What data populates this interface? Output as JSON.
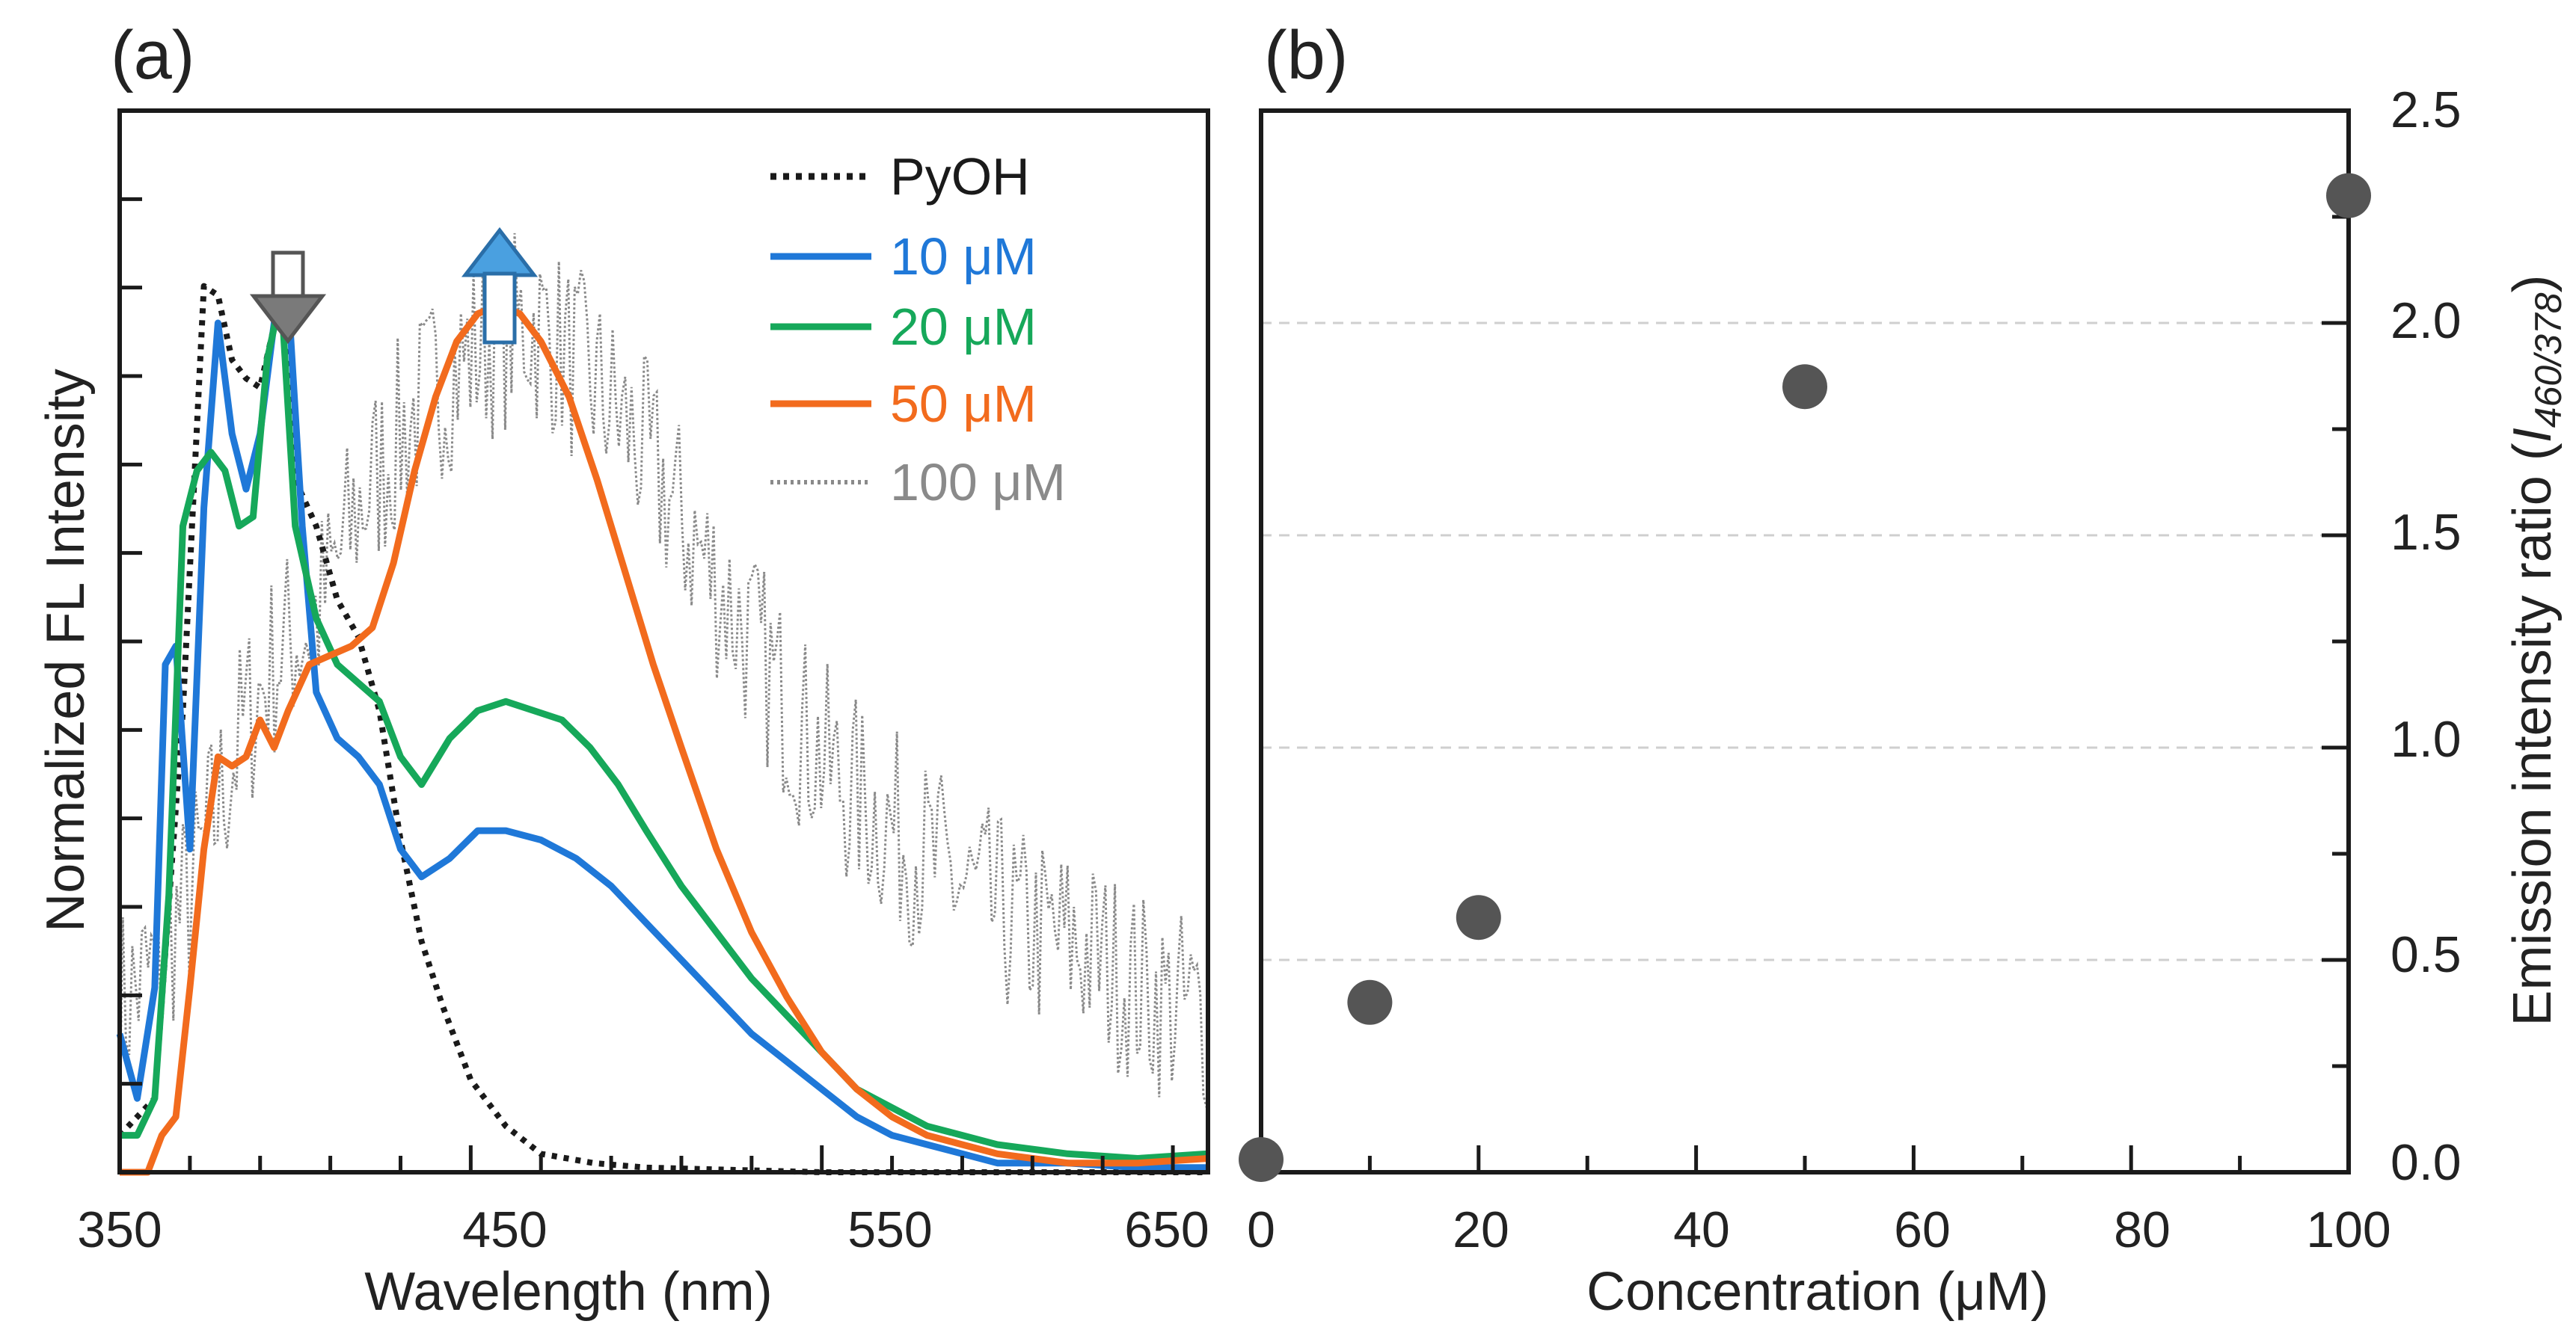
{
  "colors": {
    "axis": "#1a1a1a",
    "blue": "#1f78d8",
    "green": "#16a85a",
    "orange": "#f26b1d",
    "black": "#1a1a1a",
    "gray": "#8a8a8a",
    "point": "#555555",
    "grid": "#cfcfcf",
    "arrow_down": "#7a7a7a",
    "arrow_up": "#4aa0e0"
  },
  "chart_data": [
    {
      "panel": "(a)",
      "type": "line",
      "title": "",
      "xlabel": "Wavelength (nm)",
      "ylabel": "Normalized  FL  Intensity",
      "xlim": [
        350,
        660
      ],
      "ylim": [
        0,
        1.15
      ],
      "xticks": [
        350,
        450,
        550,
        650
      ],
      "yticks_labeled": false,
      "grid": false,
      "legend": "top-right",
      "series": [
        {
          "name": "PyOH",
          "color_key": "black",
          "style": "dotted",
          "points": [
            [
              350,
              0.04
            ],
            [
              360,
              0.08
            ],
            [
              368,
              0.5
            ],
            [
              374,
              0.96
            ],
            [
              378,
              0.95
            ],
            [
              382,
              0.88
            ],
            [
              386,
              0.86
            ],
            [
              390,
              0.85
            ],
            [
              396,
              0.95
            ],
            [
              400,
              0.75
            ],
            [
              406,
              0.7
            ],
            [
              412,
              0.62
            ],
            [
              418,
              0.58
            ],
            [
              424,
              0.5
            ],
            [
              430,
              0.36
            ],
            [
              436,
              0.25
            ],
            [
              442,
              0.18
            ],
            [
              450,
              0.1
            ],
            [
              460,
              0.05
            ],
            [
              470,
              0.02
            ],
            [
              485,
              0.01
            ],
            [
              500,
              0.005
            ],
            [
              550,
              0.0
            ],
            [
              600,
              0.0
            ],
            [
              660,
              0.0
            ]
          ]
        },
        {
          "name": "10 μM",
          "color_key": "blue",
          "style": "solid",
          "points": [
            [
              350,
              0.15
            ],
            [
              355,
              0.08
            ],
            [
              360,
              0.2
            ],
            [
              363,
              0.55
            ],
            [
              366,
              0.57
            ],
            [
              370,
              0.35
            ],
            [
              374,
              0.72
            ],
            [
              378,
              0.92
            ],
            [
              382,
              0.8
            ],
            [
              386,
              0.74
            ],
            [
              390,
              0.8
            ],
            [
              394,
              0.92
            ],
            [
              398,
              0.95
            ],
            [
              402,
              0.7
            ],
            [
              406,
              0.52
            ],
            [
              412,
              0.47
            ],
            [
              418,
              0.45
            ],
            [
              424,
              0.42
            ],
            [
              430,
              0.35
            ],
            [
              436,
              0.32
            ],
            [
              444,
              0.34
            ],
            [
              452,
              0.37
            ],
            [
              460,
              0.37
            ],
            [
              470,
              0.36
            ],
            [
              480,
              0.34
            ],
            [
              490,
              0.31
            ],
            [
              500,
              0.27
            ],
            [
              510,
              0.23
            ],
            [
              520,
              0.19
            ],
            [
              530,
              0.15
            ],
            [
              540,
              0.12
            ],
            [
              550,
              0.09
            ],
            [
              560,
              0.06
            ],
            [
              570,
              0.04
            ],
            [
              580,
              0.03
            ],
            [
              590,
              0.02
            ],
            [
              600,
              0.01
            ],
            [
              620,
              0.01
            ],
            [
              640,
              0.005
            ],
            [
              660,
              0.005
            ]
          ]
        },
        {
          "name": "20 μM",
          "color_key": "green",
          "style": "solid",
          "points": [
            [
              350,
              0.04
            ],
            [
              355,
              0.04
            ],
            [
              360,
              0.08
            ],
            [
              364,
              0.3
            ],
            [
              368,
              0.7
            ],
            [
              372,
              0.76
            ],
            [
              376,
              0.78
            ],
            [
              380,
              0.76
            ],
            [
              384,
              0.7
            ],
            [
              388,
              0.71
            ],
            [
              392,
              0.88
            ],
            [
              396,
              0.95
            ],
            [
              400,
              0.7
            ],
            [
              406,
              0.6
            ],
            [
              412,
              0.55
            ],
            [
              418,
              0.53
            ],
            [
              424,
              0.51
            ],
            [
              430,
              0.45
            ],
            [
              436,
              0.42
            ],
            [
              444,
              0.47
            ],
            [
              452,
              0.5
            ],
            [
              460,
              0.51
            ],
            [
              468,
              0.5
            ],
            [
              476,
              0.49
            ],
            [
              484,
              0.46
            ],
            [
              492,
              0.42
            ],
            [
              500,
              0.37
            ],
            [
              510,
              0.31
            ],
            [
              520,
              0.26
            ],
            [
              530,
              0.21
            ],
            [
              540,
              0.17
            ],
            [
              550,
              0.13
            ],
            [
              560,
              0.09
            ],
            [
              570,
              0.07
            ],
            [
              580,
              0.05
            ],
            [
              590,
              0.04
            ],
            [
              600,
              0.03
            ],
            [
              620,
              0.02
            ],
            [
              640,
              0.015
            ],
            [
              660,
              0.02
            ]
          ]
        },
        {
          "name": "50 μM",
          "color_key": "orange",
          "style": "solid",
          "points": [
            [
              350,
              0.0
            ],
            [
              358,
              0.0
            ],
            [
              362,
              0.04
            ],
            [
              366,
              0.06
            ],
            [
              370,
              0.2
            ],
            [
              374,
              0.35
            ],
            [
              378,
              0.45
            ],
            [
              382,
              0.44
            ],
            [
              386,
              0.45
            ],
            [
              390,
              0.49
            ],
            [
              394,
              0.46
            ],
            [
              398,
              0.5
            ],
            [
              404,
              0.55
            ],
            [
              410,
              0.56
            ],
            [
              416,
              0.57
            ],
            [
              422,
              0.59
            ],
            [
              428,
              0.66
            ],
            [
              434,
              0.76
            ],
            [
              440,
              0.84
            ],
            [
              446,
              0.9
            ],
            [
              452,
              0.93
            ],
            [
              458,
              0.94
            ],
            [
              464,
              0.93
            ],
            [
              470,
              0.9
            ],
            [
              478,
              0.84
            ],
            [
              486,
              0.75
            ],
            [
              494,
              0.65
            ],
            [
              502,
              0.55
            ],
            [
              510,
              0.46
            ],
            [
              520,
              0.35
            ],
            [
              530,
              0.26
            ],
            [
              540,
              0.19
            ],
            [
              550,
              0.13
            ],
            [
              560,
              0.09
            ],
            [
              570,
              0.06
            ],
            [
              580,
              0.04
            ],
            [
              590,
              0.03
            ],
            [
              600,
              0.02
            ],
            [
              620,
              0.01
            ],
            [
              640,
              0.01
            ],
            [
              660,
              0.015
            ]
          ]
        },
        {
          "name": "100 μM",
          "color_key": "gray",
          "style": "dotted-noisy",
          "points": [
            [
              350,
              0.18
            ],
            [
              355,
              0.2
            ],
            [
              360,
              0.22
            ],
            [
              365,
              0.26
            ],
            [
              370,
              0.3
            ],
            [
              375,
              0.36
            ],
            [
              380,
              0.42
            ],
            [
              385,
              0.48
            ],
            [
              390,
              0.52
            ],
            [
              395,
              0.56
            ],
            [
              400,
              0.58
            ],
            [
              406,
              0.6
            ],
            [
              412,
              0.66
            ],
            [
              418,
              0.72
            ],
            [
              424,
              0.76
            ],
            [
              430,
              0.8
            ],
            [
              436,
              0.83
            ],
            [
              442,
              0.86
            ],
            [
              448,
              0.88
            ],
            [
              454,
              0.9
            ],
            [
              460,
              0.91
            ],
            [
              466,
              0.92
            ],
            [
              472,
              0.91
            ],
            [
              478,
              0.88
            ],
            [
              484,
              0.86
            ],
            [
              490,
              0.83
            ],
            [
              496,
              0.8
            ],
            [
              502,
              0.76
            ],
            [
              508,
              0.72
            ],
            [
              514,
              0.68
            ],
            [
              520,
              0.64
            ],
            [
              526,
              0.6
            ],
            [
              532,
              0.56
            ],
            [
              538,
              0.52
            ],
            [
              544,
              0.48
            ],
            [
              550,
              0.45
            ],
            [
              556,
              0.42
            ],
            [
              562,
              0.4
            ],
            [
              568,
              0.38
            ],
            [
              574,
              0.36
            ],
            [
              580,
              0.34
            ],
            [
              590,
              0.31
            ],
            [
              600,
              0.28
            ],
            [
              610,
              0.26
            ],
            [
              620,
              0.25
            ],
            [
              630,
              0.23
            ],
            [
              640,
              0.2
            ],
            [
              650,
              0.18
            ],
            [
              660,
              0.17
            ]
          ]
        }
      ],
      "annotations": [
        "down-arrow at ~396 nm (PyOH monomer peak decreasing)",
        "up-arrow at ~460 nm (excimer band increasing)"
      ]
    },
    {
      "panel": "(b)",
      "type": "scatter",
      "title": "",
      "xlabel": "Concentration (μM)",
      "ylabel": "Emission intensity ratio (I460/378)",
      "xlim": [
        0,
        100
      ],
      "ylim": [
        0.0,
        2.5
      ],
      "xticks": [
        0,
        20,
        40,
        60,
        80,
        100
      ],
      "yticks": [
        0.0,
        0.5,
        1.0,
        1.5,
        2.0,
        2.5
      ],
      "grid": true,
      "x": [
        0,
        10,
        20,
        50,
        100
      ],
      "y": [
        0.03,
        0.4,
        0.6,
        1.85,
        2.3
      ]
    }
  ],
  "text": {
    "panel_a": "(a)",
    "panel_b": "(b)",
    "a_xlabel": "Wavelength (nm)",
    "a_ylabel": "Normalized  FL  Intensity",
    "b_xlabel": "Concentration (μM)",
    "b_ylabel_main": "Emission intensity ratio (",
    "b_ylabel_I": "I",
    "b_ylabel_sub": "460/378",
    "b_ylabel_close": ")",
    "a_xtick_0": "350",
    "a_xtick_1": "450",
    "a_xtick_2": "550",
    "a_xtick_3": "650",
    "b_xtick_0": "0",
    "b_xtick_1": "20",
    "b_xtick_2": "40",
    "b_xtick_3": "60",
    "b_xtick_4": "80",
    "b_xtick_5": "100",
    "b_ytick_0": "0.0",
    "b_ytick_1": "0.5",
    "b_ytick_2": "1.0",
    "b_ytick_3": "1.5",
    "b_ytick_4": "2.0",
    "b_ytick_5": "2.5",
    "legend_0": "PyOH",
    "legend_1": "10 μM",
    "legend_2": "20 μM",
    "legend_3": "50 μM",
    "legend_4": "100 μM"
  }
}
